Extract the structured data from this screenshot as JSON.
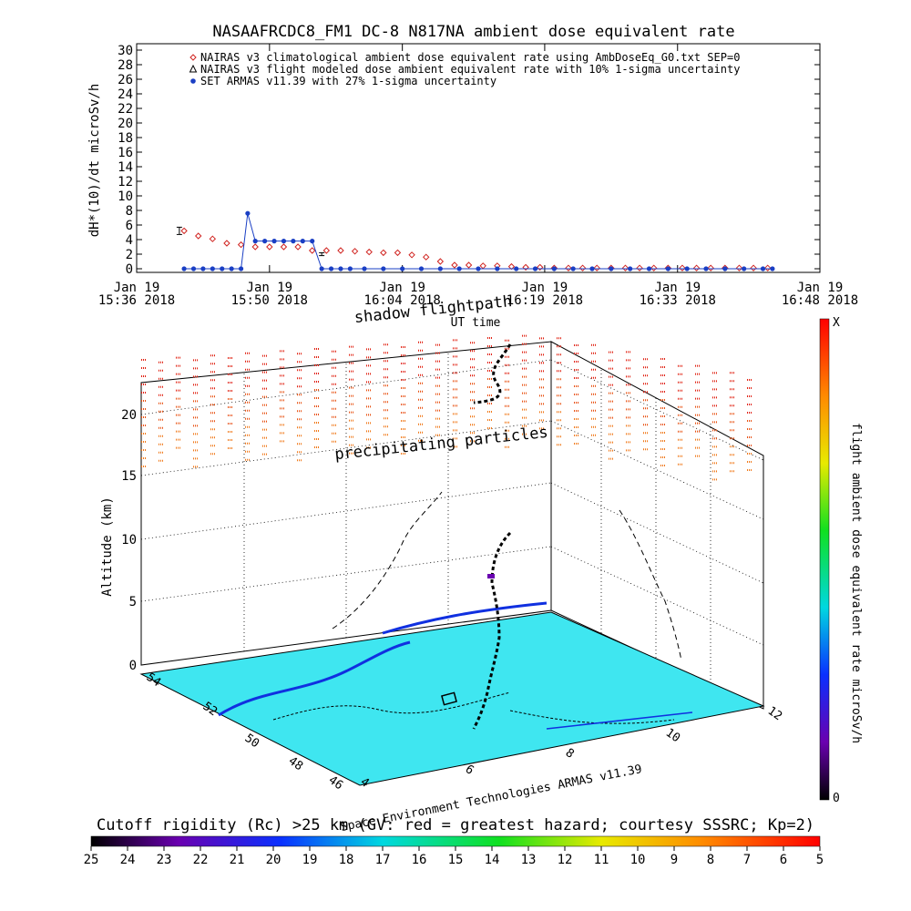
{
  "chart_data": [
    {
      "type": "line",
      "title": "NASAAFRCDC8_FM1 DC-8   N817NA ambient dose equivalent rate",
      "ylabel": "dH*(10)/dt microSv/h",
      "xlabel": "UT time",
      "ylim": [
        0,
        30
      ],
      "yticks": [
        0,
        2,
        4,
        6,
        8,
        10,
        12,
        14,
        16,
        18,
        20,
        22,
        24,
        26,
        28,
        30
      ],
      "xlim_minutes_after_1536": [
        0,
        72
      ],
      "xticks": [
        {
          "t": 0,
          "line1": "Jan 19",
          "line2": "15:36 2018"
        },
        {
          "t": 14,
          "line1": "Jan 19",
          "line2": "15:50 2018"
        },
        {
          "t": 28,
          "line1": "Jan 19",
          "line2": "16:04 2018"
        },
        {
          "t": 43,
          "line1": "Jan 19",
          "line2": "16:19 2018"
        },
        {
          "t": 57,
          "line1": "Jan 19",
          "line2": "16:33 2018"
        },
        {
          "t": 72,
          "line1": "Jan 19",
          "line2": "16:48 2018"
        }
      ],
      "legend": [
        {
          "name": "NAIRAS v3 climatological ambient dose equivalent rate using AmbDoseEq_G0.txt SEP=0",
          "color": "#d0231f",
          "marker": "diamond"
        },
        {
          "name": "NAIRAS v3 flight modeled dose ambient equivalent rate with 10% 1-sigma uncertainty",
          "color": "#000000",
          "marker": "triangle"
        },
        {
          "name": "SET ARMAS v11.39 with 27% 1-sigma uncertainty",
          "color": "#1a3fc4",
          "marker": "circle"
        }
      ],
      "legend_position": "top-left",
      "series": [
        {
          "name": "NAIRAS v3 climatological ambient dose equivalent rate using AmbDoseEq_G0.txt SEP=0",
          "x": [
            5,
            6.5,
            8,
            9.5,
            11,
            12.5,
            14,
            15.5,
            17,
            18.5,
            20,
            21.5,
            23,
            24.5,
            26,
            27.5,
            29,
            30.5,
            32,
            33.5,
            35,
            36.5,
            38,
            39.5,
            41,
            42.5,
            44,
            45.5,
            47,
            48.5,
            50,
            51.5,
            53,
            54.5,
            56,
            57.5,
            59,
            60.5,
            62,
            63.5,
            65,
            66.5
          ],
          "y": [
            5.2,
            4.5,
            4.1,
            3.5,
            3.3,
            3.0,
            3.0,
            3.0,
            3.0,
            2.5,
            2.5,
            2.5,
            2.4,
            2.3,
            2.2,
            2.2,
            1.9,
            1.6,
            1.0,
            0.5,
            0.5,
            0.4,
            0.4,
            0.3,
            0.2,
            0.2,
            0.1,
            0.1,
            0.1,
            0.1,
            0.1,
            0.1,
            0.1,
            0.1,
            0.1,
            0.1,
            0.1,
            0.1,
            0.1,
            0.1,
            0.1,
            0.1
          ]
        },
        {
          "name": "SET ARMAS v11.39 with 27% 1-sigma uncertainty",
          "x": [
            5,
            6,
            7,
            8,
            9,
            10,
            11,
            11.7,
            12.5,
            13.5,
            14.5,
            15.5,
            16.5,
            17.5,
            18.5,
            19.5,
            20.5,
            21.5,
            22.5,
            24,
            26,
            28,
            30,
            32,
            34,
            36,
            38,
            40,
            42,
            44,
            46,
            48,
            50,
            52,
            54,
            56,
            58,
            60,
            62,
            64,
            66,
            67
          ],
          "y": [
            0,
            0,
            0,
            0,
            0,
            0,
            0,
            7.6,
            3.8,
            3.8,
            3.8,
            3.8,
            3.8,
            3.8,
            3.8,
            0,
            0,
            0,
            0,
            0,
            0,
            0,
            0,
            0,
            0,
            0,
            0,
            0,
            0,
            0,
            0,
            0,
            0,
            0,
            0,
            0,
            0,
            0,
            0,
            0,
            0,
            0
          ]
        },
        {
          "name": "NAIRAS v3 flight modeled dose ambient equivalent rate with 10% 1-sigma uncertainty",
          "x": [
            4.5,
            19.5
          ],
          "y": [
            5.2,
            2.0
          ],
          "err": [
            0.5,
            0.2
          ]
        }
      ]
    },
    {
      "type": "scatter",
      "zlabel": "Altitude (km)",
      "zticks": [
        0,
        5,
        10,
        15,
        20
      ],
      "lat_ticks": [
        "54",
        "52",
        "50",
        "48",
        "46"
      ],
      "lon_ticks": [
        "4",
        "6",
        "8",
        "10",
        "12"
      ],
      "annotations": [
        "shadow flightpath",
        "precipitating particles",
        "UT time",
        "Space Environment Technologies ARMAS v11.39"
      ],
      "colorbar": {
        "label": "flight ambient dose equivalent rate microSv/h",
        "max_label": "X",
        "min_label": "0",
        "position": "right"
      }
    },
    {
      "type": "heatmap",
      "title": "Cutoff rigidity (Rc) >25 km (GV: red = greatest hazard; courtesy SSSRC; Kp=2)",
      "colorbar_ticks": [
        "25",
        "24",
        "23",
        "22",
        "21",
        "20",
        "19",
        "18",
        "17",
        "16",
        "15",
        "14",
        "13",
        "12",
        "11",
        "10",
        "9",
        "8",
        "7",
        "6",
        "5"
      ],
      "colorbar_position": "bottom"
    }
  ]
}
